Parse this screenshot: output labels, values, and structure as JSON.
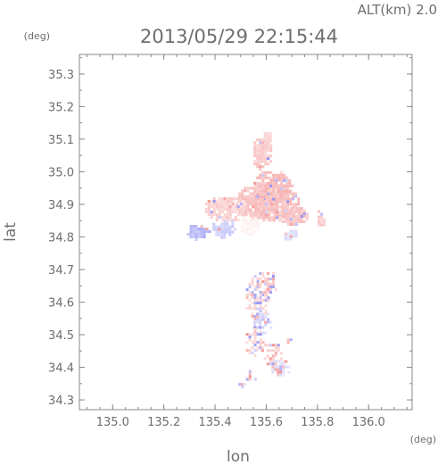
{
  "header": {
    "alt_label": "ALT(km) 2.0",
    "timestamp": "2013/05/29 22:15:44"
  },
  "chart_data": {
    "type": "heatmap",
    "title": "2013/05/29 22:15:44",
    "xlabel": "lon",
    "ylabel": "lat",
    "x_unit": "(deg)",
    "y_unit": "(deg)",
    "xlim": [
      134.87,
      136.17
    ],
    "ylim": [
      34.27,
      35.36
    ],
    "x_ticks": [
      135.0,
      135.2,
      135.4,
      135.6,
      135.8,
      136.0
    ],
    "x_tick_labels": [
      "135.0",
      "135.2",
      "135.4",
      "135.6",
      "135.8",
      "136.0"
    ],
    "y_ticks": [
      34.3,
      34.4,
      34.5,
      34.6,
      34.7,
      34.8,
      34.9,
      35.0,
      35.1,
      35.2,
      35.3
    ],
    "y_tick_labels": [
      "34.3",
      "34.4",
      "34.5",
      "34.6",
      "34.7",
      "34.8",
      "34.9",
      "35.0",
      "35.1",
      "35.2",
      "35.3"
    ],
    "grid": false,
    "colors": {
      "positive": "#f08080",
      "negative": "#7b7bf0",
      "axis": "#8a8a8a"
    },
    "regions": [
      {
        "lon": 135.6,
        "lat": 34.91,
        "rx": 0.13,
        "ry": 0.06,
        "value": 0.3
      },
      {
        "lon": 135.62,
        "lat": 34.96,
        "rx": 0.08,
        "ry": 0.05,
        "value": 0.32
      },
      {
        "lon": 135.44,
        "lat": 34.89,
        "rx": 0.09,
        "ry": 0.04,
        "value": 0.22
      },
      {
        "lon": 135.58,
        "lat": 35.06,
        "rx": 0.04,
        "ry": 0.05,
        "value": 0.25
      },
      {
        "lon": 135.6,
        "lat": 35.11,
        "rx": 0.02,
        "ry": 0.02,
        "value": 0.2
      },
      {
        "lon": 135.7,
        "lat": 34.87,
        "rx": 0.06,
        "ry": 0.03,
        "value": 0.28
      },
      {
        "lon": 135.81,
        "lat": 34.86,
        "rx": 0.02,
        "ry": 0.03,
        "value": 0.25
      },
      {
        "lon": 135.43,
        "lat": 34.83,
        "rx": 0.05,
        "ry": 0.03,
        "value": -0.22
      },
      {
        "lon": 135.33,
        "lat": 34.82,
        "rx": 0.05,
        "ry": 0.025,
        "value": -0.32
      },
      {
        "lon": 135.53,
        "lat": 34.84,
        "rx": 0.04,
        "ry": 0.03,
        "value": 0.06
      },
      {
        "lon": 135.69,
        "lat": 34.81,
        "rx": 0.03,
        "ry": 0.02,
        "value": -0.15
      },
      {
        "lon": 135.56,
        "lat": 34.62,
        "rx": 0.05,
        "ry": 0.08,
        "value": 0.18
      },
      {
        "lon": 135.6,
        "lat": 34.66,
        "rx": 0.04,
        "ry": 0.04,
        "value": 0.22
      },
      {
        "lon": 135.58,
        "lat": 34.55,
        "rx": 0.04,
        "ry": 0.05,
        "value": -0.18
      },
      {
        "lon": 135.55,
        "lat": 34.48,
        "rx": 0.04,
        "ry": 0.05,
        "value": 0.18
      },
      {
        "lon": 135.62,
        "lat": 34.44,
        "rx": 0.05,
        "ry": 0.04,
        "value": 0.2
      },
      {
        "lon": 135.65,
        "lat": 34.4,
        "rx": 0.04,
        "ry": 0.03,
        "value": -0.14
      },
      {
        "lon": 135.68,
        "lat": 34.49,
        "rx": 0.02,
        "ry": 0.015,
        "value": -0.3
      },
      {
        "lon": 135.53,
        "lat": 34.38,
        "rx": 0.03,
        "ry": 0.02,
        "value": 0.04
      },
      {
        "lon": 135.5,
        "lat": 34.35,
        "rx": 0.03,
        "ry": 0.01,
        "value": -0.12
      }
    ]
  }
}
